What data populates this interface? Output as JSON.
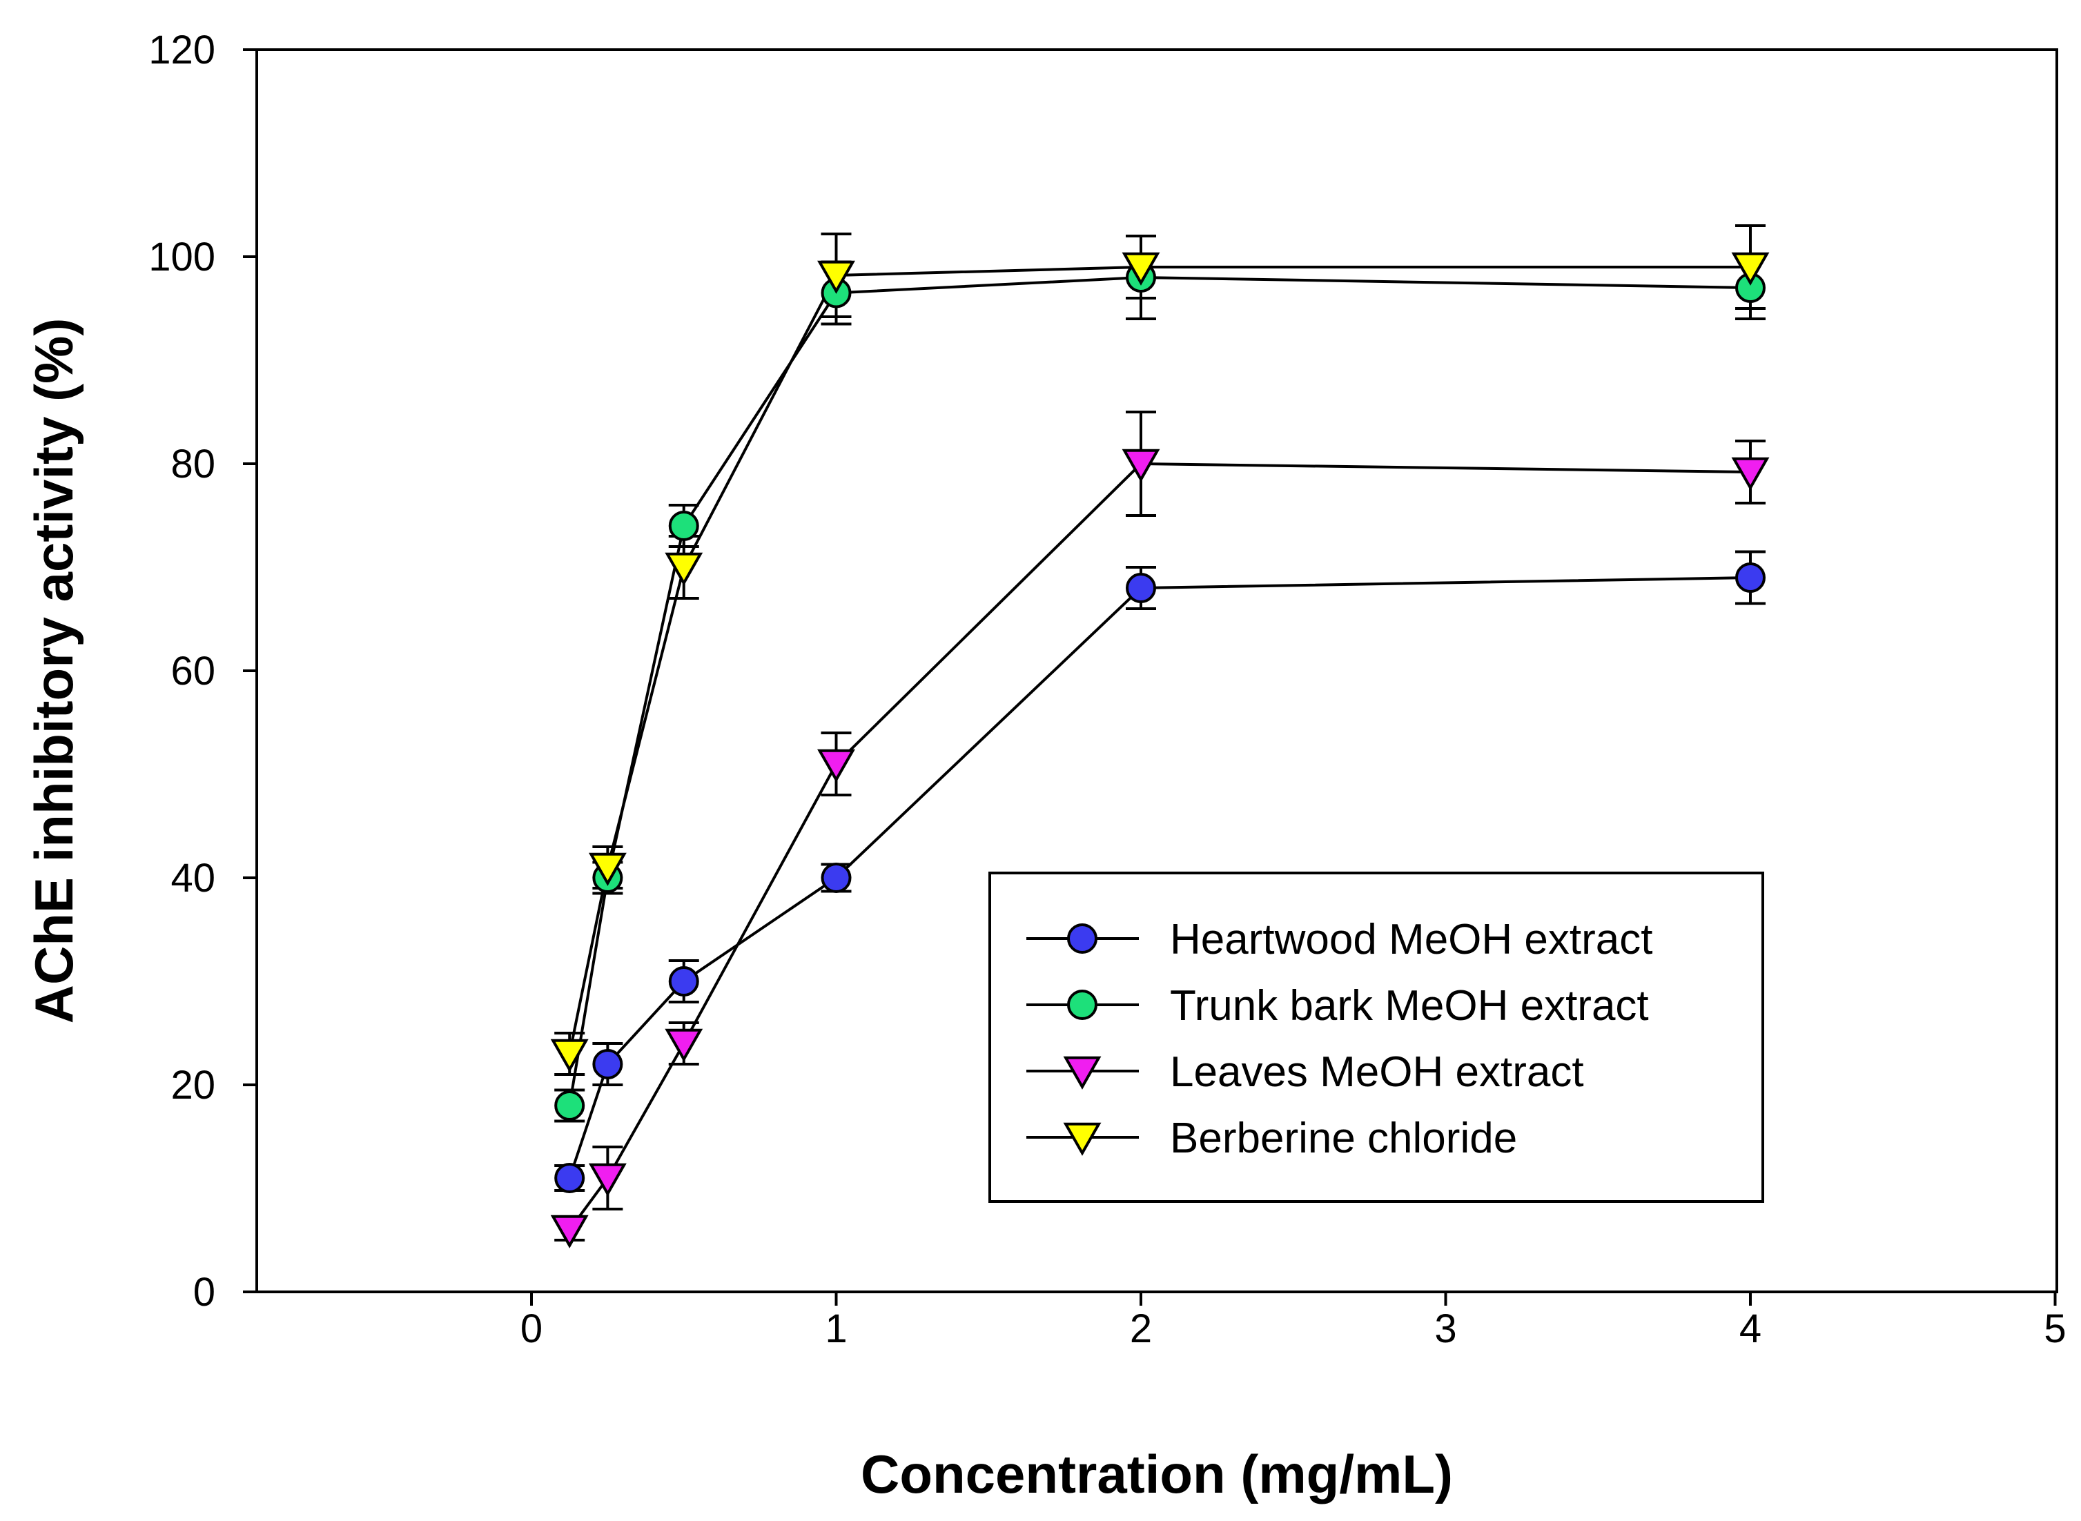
{
  "chart_data": {
    "type": "line",
    "title": "",
    "xlabel": "Concentration (mg/mL)",
    "ylabel": "AChE inhibitory activity (%)",
    "x_ticks": [
      "0",
      "1",
      "2",
      "3",
      "4",
      "5"
    ],
    "y_ticks": [
      "0",
      "20",
      "40",
      "60",
      "80",
      "100",
      "120"
    ],
    "ylim": [
      0,
      120
    ],
    "grid": false,
    "legend_position": "lower-right",
    "x_axis_note": "nonlinear axis: 0.125, 0.25, 0.5, 1 and 2 sit at their linear positions; 4 is plotted at the 4 tick",
    "x": [
      0.125,
      0.25,
      0.5,
      1,
      2,
      4
    ],
    "series": [
      {
        "name": "Heartwood MeOH extract",
        "marker": "circle",
        "color": "#3b3bf0",
        "values": [
          11,
          22,
          30,
          40,
          68,
          69
        ],
        "errors": [
          1.2,
          2,
          2,
          1.3,
          2,
          2.5
        ]
      },
      {
        "name": "Trunk bark MeOH extract",
        "marker": "circle",
        "color": "#1de07a",
        "values": [
          18,
          40,
          74,
          96.5,
          98,
          97
        ],
        "errors": [
          1.5,
          1.5,
          2,
          3,
          4,
          3
        ]
      },
      {
        "name": "Leaves MeOH extract",
        "marker": "triangle-down",
        "color": "#f01ef0",
        "values": [
          6,
          11,
          24,
          51,
          80,
          79.2
        ],
        "errors": [
          1,
          3,
          2,
          3,
          5,
          3
        ]
      },
      {
        "name": "Berberine chloride",
        "marker": "triangle-down",
        "color": "#ffff00",
        "values": [
          23,
          41,
          70,
          98.2,
          99,
          99
        ],
        "errors": [
          2,
          2,
          3,
          4,
          3,
          4
        ]
      }
    ]
  }
}
